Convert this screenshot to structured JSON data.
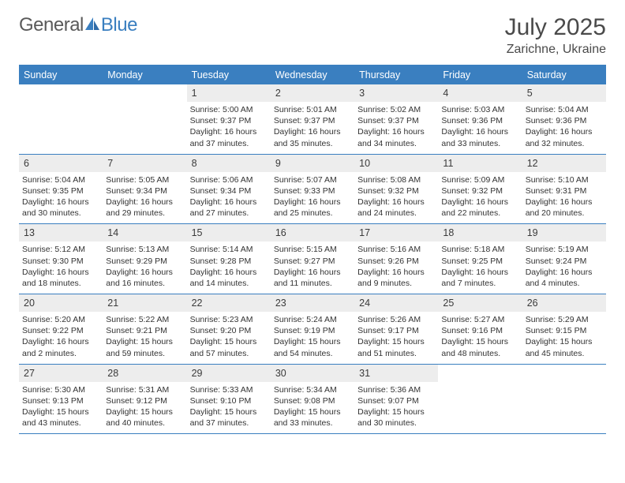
{
  "logo": {
    "general": "General",
    "blue": "Blue"
  },
  "title": "July 2025",
  "location": "Zarichne, Ukraine",
  "colors": {
    "accent": "#3a7fc0",
    "header_bg": "#3a7fc0",
    "header_text": "#ffffff",
    "daynum_bg": "#ededed",
    "text": "#333333",
    "border": "#3a7fc0"
  },
  "day_headers": [
    "Sunday",
    "Monday",
    "Tuesday",
    "Wednesday",
    "Thursday",
    "Friday",
    "Saturday"
  ],
  "weeks": [
    [
      null,
      null,
      {
        "n": "1",
        "sr": "Sunrise: 5:00 AM",
        "ss": "Sunset: 9:37 PM",
        "d1": "Daylight: 16 hours",
        "d2": "and 37 minutes."
      },
      {
        "n": "2",
        "sr": "Sunrise: 5:01 AM",
        "ss": "Sunset: 9:37 PM",
        "d1": "Daylight: 16 hours",
        "d2": "and 35 minutes."
      },
      {
        "n": "3",
        "sr": "Sunrise: 5:02 AM",
        "ss": "Sunset: 9:37 PM",
        "d1": "Daylight: 16 hours",
        "d2": "and 34 minutes."
      },
      {
        "n": "4",
        "sr": "Sunrise: 5:03 AM",
        "ss": "Sunset: 9:36 PM",
        "d1": "Daylight: 16 hours",
        "d2": "and 33 minutes."
      },
      {
        "n": "5",
        "sr": "Sunrise: 5:04 AM",
        "ss": "Sunset: 9:36 PM",
        "d1": "Daylight: 16 hours",
        "d2": "and 32 minutes."
      }
    ],
    [
      {
        "n": "6",
        "sr": "Sunrise: 5:04 AM",
        "ss": "Sunset: 9:35 PM",
        "d1": "Daylight: 16 hours",
        "d2": "and 30 minutes."
      },
      {
        "n": "7",
        "sr": "Sunrise: 5:05 AM",
        "ss": "Sunset: 9:34 PM",
        "d1": "Daylight: 16 hours",
        "d2": "and 29 minutes."
      },
      {
        "n": "8",
        "sr": "Sunrise: 5:06 AM",
        "ss": "Sunset: 9:34 PM",
        "d1": "Daylight: 16 hours",
        "d2": "and 27 minutes."
      },
      {
        "n": "9",
        "sr": "Sunrise: 5:07 AM",
        "ss": "Sunset: 9:33 PM",
        "d1": "Daylight: 16 hours",
        "d2": "and 25 minutes."
      },
      {
        "n": "10",
        "sr": "Sunrise: 5:08 AM",
        "ss": "Sunset: 9:32 PM",
        "d1": "Daylight: 16 hours",
        "d2": "and 24 minutes."
      },
      {
        "n": "11",
        "sr": "Sunrise: 5:09 AM",
        "ss": "Sunset: 9:32 PM",
        "d1": "Daylight: 16 hours",
        "d2": "and 22 minutes."
      },
      {
        "n": "12",
        "sr": "Sunrise: 5:10 AM",
        "ss": "Sunset: 9:31 PM",
        "d1": "Daylight: 16 hours",
        "d2": "and 20 minutes."
      }
    ],
    [
      {
        "n": "13",
        "sr": "Sunrise: 5:12 AM",
        "ss": "Sunset: 9:30 PM",
        "d1": "Daylight: 16 hours",
        "d2": "and 18 minutes."
      },
      {
        "n": "14",
        "sr": "Sunrise: 5:13 AM",
        "ss": "Sunset: 9:29 PM",
        "d1": "Daylight: 16 hours",
        "d2": "and 16 minutes."
      },
      {
        "n": "15",
        "sr": "Sunrise: 5:14 AM",
        "ss": "Sunset: 9:28 PM",
        "d1": "Daylight: 16 hours",
        "d2": "and 14 minutes."
      },
      {
        "n": "16",
        "sr": "Sunrise: 5:15 AM",
        "ss": "Sunset: 9:27 PM",
        "d1": "Daylight: 16 hours",
        "d2": "and 11 minutes."
      },
      {
        "n": "17",
        "sr": "Sunrise: 5:16 AM",
        "ss": "Sunset: 9:26 PM",
        "d1": "Daylight: 16 hours",
        "d2": "and 9 minutes."
      },
      {
        "n": "18",
        "sr": "Sunrise: 5:18 AM",
        "ss": "Sunset: 9:25 PM",
        "d1": "Daylight: 16 hours",
        "d2": "and 7 minutes."
      },
      {
        "n": "19",
        "sr": "Sunrise: 5:19 AM",
        "ss": "Sunset: 9:24 PM",
        "d1": "Daylight: 16 hours",
        "d2": "and 4 minutes."
      }
    ],
    [
      {
        "n": "20",
        "sr": "Sunrise: 5:20 AM",
        "ss": "Sunset: 9:22 PM",
        "d1": "Daylight: 16 hours",
        "d2": "and 2 minutes."
      },
      {
        "n": "21",
        "sr": "Sunrise: 5:22 AM",
        "ss": "Sunset: 9:21 PM",
        "d1": "Daylight: 15 hours",
        "d2": "and 59 minutes."
      },
      {
        "n": "22",
        "sr": "Sunrise: 5:23 AM",
        "ss": "Sunset: 9:20 PM",
        "d1": "Daylight: 15 hours",
        "d2": "and 57 minutes."
      },
      {
        "n": "23",
        "sr": "Sunrise: 5:24 AM",
        "ss": "Sunset: 9:19 PM",
        "d1": "Daylight: 15 hours",
        "d2": "and 54 minutes."
      },
      {
        "n": "24",
        "sr": "Sunrise: 5:26 AM",
        "ss": "Sunset: 9:17 PM",
        "d1": "Daylight: 15 hours",
        "d2": "and 51 minutes."
      },
      {
        "n": "25",
        "sr": "Sunrise: 5:27 AM",
        "ss": "Sunset: 9:16 PM",
        "d1": "Daylight: 15 hours",
        "d2": "and 48 minutes."
      },
      {
        "n": "26",
        "sr": "Sunrise: 5:29 AM",
        "ss": "Sunset: 9:15 PM",
        "d1": "Daylight: 15 hours",
        "d2": "and 45 minutes."
      }
    ],
    [
      {
        "n": "27",
        "sr": "Sunrise: 5:30 AM",
        "ss": "Sunset: 9:13 PM",
        "d1": "Daylight: 15 hours",
        "d2": "and 43 minutes."
      },
      {
        "n": "28",
        "sr": "Sunrise: 5:31 AM",
        "ss": "Sunset: 9:12 PM",
        "d1": "Daylight: 15 hours",
        "d2": "and 40 minutes."
      },
      {
        "n": "29",
        "sr": "Sunrise: 5:33 AM",
        "ss": "Sunset: 9:10 PM",
        "d1": "Daylight: 15 hours",
        "d2": "and 37 minutes."
      },
      {
        "n": "30",
        "sr": "Sunrise: 5:34 AM",
        "ss": "Sunset: 9:08 PM",
        "d1": "Daylight: 15 hours",
        "d2": "and 33 minutes."
      },
      {
        "n": "31",
        "sr": "Sunrise: 5:36 AM",
        "ss": "Sunset: 9:07 PM",
        "d1": "Daylight: 15 hours",
        "d2": "and 30 minutes."
      },
      null,
      null
    ]
  ]
}
